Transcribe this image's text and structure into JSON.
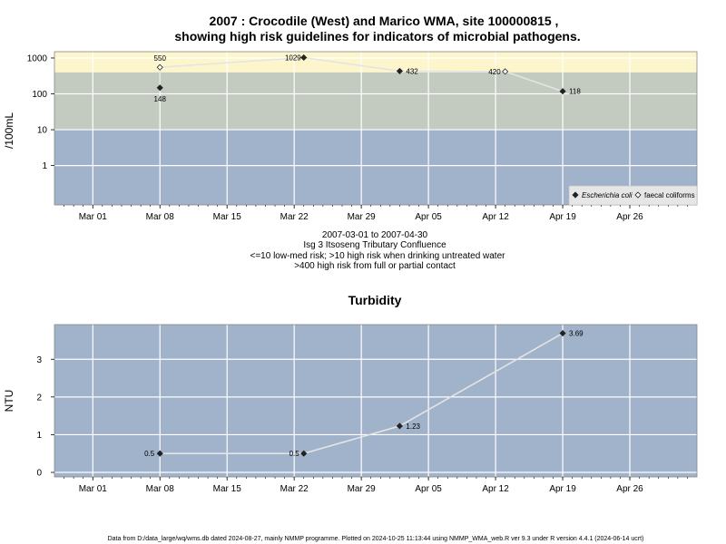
{
  "chart_data": [
    {
      "type": "line",
      "title_line1": "2007 : Crocodile (West) and Marico WMA, site 100000815 ,",
      "title_line2": "showing high risk guidelines for indicators of microbial pathogens.",
      "ylabel": "/100mL",
      "y_scale": "log",
      "y_ticks": [
        "1",
        "10",
        "100",
        "1000"
      ],
      "x_ticks": [
        "Mar 01",
        "Mar 08",
        "Mar 15",
        "Mar 22",
        "Mar 29",
        "Apr 05",
        "Apr 12",
        "Apr 19",
        "Apr 26"
      ],
      "bands": [
        {
          "from": 0.08,
          "to": 10,
          "color": "#a1b2cb"
        },
        {
          "from": 10,
          "to": 400,
          "color": "#c3cac0"
        },
        {
          "from": 400,
          "to": 1500,
          "color": "#fdf6cd"
        }
      ],
      "grid": true,
      "legend_position": "bottom-right",
      "series": [
        {
          "name": "Escherichia coli",
          "marker": "filled-diamond",
          "points": [
            {
              "x": "2007-03-08",
              "y": 148,
              "label": "148"
            },
            {
              "x": "2007-03-23",
              "y": 1029,
              "label": "1029"
            },
            {
              "x": "2007-04-02",
              "y": 432,
              "label": "432"
            },
            {
              "x": "2007-04-19",
              "y": 118,
              "label": "118"
            }
          ]
        },
        {
          "name": "faecal coliforms",
          "marker": "open-diamond",
          "points": [
            {
              "x": "2007-03-08",
              "y": 550,
              "label": "550"
            },
            {
              "x": "2007-04-13",
              "y": 420,
              "label": "420"
            }
          ]
        }
      ]
    },
    {
      "type": "line",
      "title": "Turbidity",
      "ylabel": "NTU",
      "y_ticks": [
        "0",
        "1",
        "2",
        "3"
      ],
      "x_ticks": [
        "Mar 01",
        "Mar 08",
        "Mar 15",
        "Mar 22",
        "Mar 29",
        "Apr 05",
        "Apr 12",
        "Apr 19",
        "Apr 26"
      ],
      "grid": true,
      "background": "#a1b2cb",
      "series": [
        {
          "marker": "filled-diamond",
          "points": [
            {
              "x": "2007-03-08",
              "y": 0.5,
              "label": "0.5"
            },
            {
              "x": "2007-03-23",
              "y": 0.5,
              "label": "0.5"
            },
            {
              "x": "2007-04-02",
              "y": 1.23,
              "label": "1.23"
            },
            {
              "x": "2007-04-19",
              "y": 3.69,
              "label": "3.69"
            }
          ]
        }
      ]
    }
  ],
  "subtitle": {
    "line1": "2007-03-01 to 2007-04-30",
    "line2": "Isg 3 Itsoseng Tributary Confluence",
    "line3": "<=10 low-med risk; >10 high risk when drinking untreated water",
    "line4": ">400 high risk from full or partial contact"
  },
  "footer": "Data from D:/data_large/wq/wms.db dated 2024-08-27, mainly NMMP programme. Plotted on 2024-10-25 11:13:44 using NMMP_WMA_web.R ver 9.3 under R version 4.4.1 (2024-06-14 ucrt)",
  "colors": {
    "line": "#e4e4e4",
    "grid": "#ffffff",
    "marker": "#222222",
    "panel_bg": "#a1b2cb",
    "frame": "#888888"
  }
}
